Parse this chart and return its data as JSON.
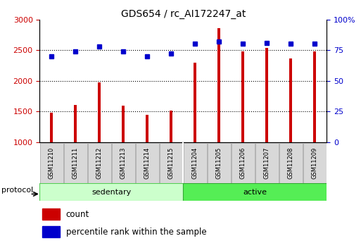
{
  "title": "GDS654 / rc_AI172247_at",
  "samples": [
    "GSM11210",
    "GSM11211",
    "GSM11212",
    "GSM11213",
    "GSM11214",
    "GSM11215",
    "GSM11204",
    "GSM11205",
    "GSM11206",
    "GSM11207",
    "GSM11208",
    "GSM11209"
  ],
  "count_values": [
    1480,
    1610,
    1970,
    1590,
    1450,
    1510,
    2300,
    2860,
    2480,
    2540,
    2360,
    2480
  ],
  "percentile_values": [
    70,
    74,
    78,
    74,
    70,
    72,
    80,
    82,
    80,
    81,
    80,
    80
  ],
  "ylim_left": [
    1000,
    3000
  ],
  "ylim_right": [
    0,
    100
  ],
  "yticks_left": [
    1000,
    1500,
    2000,
    2500,
    3000
  ],
  "yticks_right": [
    0,
    25,
    50,
    75,
    100
  ],
  "groups": [
    {
      "label": "sedentary",
      "start": 0,
      "end": 6,
      "color": "#ccffcc",
      "edge": "#55cc55"
    },
    {
      "label": "active",
      "start": 6,
      "end": 12,
      "color": "#55ee55",
      "edge": "#33aa33"
    }
  ],
  "protocol_label": "protocol",
  "bar_color": "#cc0000",
  "dot_color": "#0000cc",
  "bg_color": "#ffffff",
  "left_axis_color": "#cc0000",
  "right_axis_color": "#0000cc",
  "legend_count_label": "count",
  "legend_percentile_label": "percentile rank within the sample",
  "bar_width": 0.12,
  "label_box_color": "#d8d8d8",
  "label_box_edge": "#aaaaaa"
}
